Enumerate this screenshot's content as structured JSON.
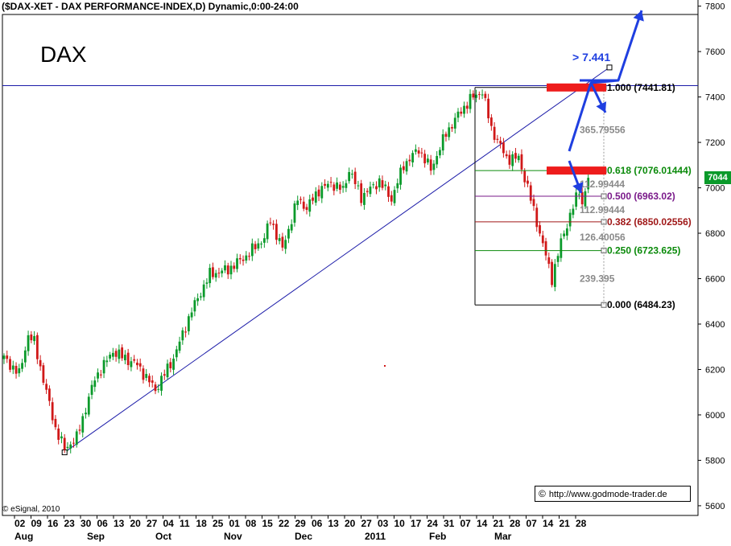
{
  "header": "($DAX-XET - DAX PERFORMANCE-INDEX,D) Dynamic,0:00-24:00",
  "label": "DAX",
  "credit": "http://www.godmode-trader.de",
  "credit_icon": "copyright-icon",
  "esignal": "© eSignal, 2010",
  "last_price": "7044",
  "target_label": "> 7.441",
  "colors": {
    "up": "#0a9a2a",
    "down": "#d01818",
    "trend": "#1a1aa8",
    "arrow": "#1f3fe0",
    "zone": "#ee1c1c"
  },
  "chart_data": {
    "type": "candlestick",
    "ylim": [
      5550,
      7850
    ],
    "y_ticks": [
      "5600",
      "5800",
      "6000",
      "6200",
      "6400",
      "6600",
      "6800",
      "7000",
      "7200",
      "7400",
      "7600",
      "7800"
    ],
    "x_day_labels": [
      "02",
      "09",
      "16",
      "23",
      "30",
      "06",
      "13",
      "20",
      "27",
      "04",
      "11",
      "18",
      "25",
      "01",
      "08",
      "15",
      "22",
      "29",
      "06",
      "13",
      "20",
      "27",
      "03",
      "10",
      "17",
      "24",
      "31",
      "07",
      "14",
      "21",
      "28",
      "07",
      "14",
      "21",
      "28"
    ],
    "x_month_labels": [
      "Aug",
      "Sep",
      "Oct",
      "Nov",
      "Dec",
      "2011",
      "Feb",
      "Mar"
    ],
    "close_waypoints": [
      [
        0,
        6250
      ],
      [
        5,
        6180
      ],
      [
        8,
        6350
      ],
      [
        10,
        6320
      ],
      [
        14,
        6100
      ],
      [
        17,
        5940
      ],
      [
        20,
        5850
      ],
      [
        24,
        5900
      ],
      [
        30,
        6160
      ],
      [
        36,
        6280
      ],
      [
        44,
        6220
      ],
      [
        50,
        6110
      ],
      [
        56,
        6250
      ],
      [
        62,
        6460
      ],
      [
        68,
        6620
      ],
      [
        74,
        6640
      ],
      [
        80,
        6700
      ],
      [
        86,
        6780
      ],
      [
        88,
        6860
      ],
      [
        92,
        6730
      ],
      [
        97,
        6950
      ],
      [
        100,
        6910
      ],
      [
        104,
        6990
      ],
      [
        108,
        7020
      ],
      [
        112,
        6990
      ],
      [
        114,
        7080
      ],
      [
        118,
        6960
      ],
      [
        124,
        7030
      ],
      [
        128,
        6950
      ],
      [
        132,
        7100
      ],
      [
        137,
        7170
      ],
      [
        141,
        7080
      ],
      [
        146,
        7240
      ],
      [
        150,
        7320
      ],
      [
        154,
        7390
      ],
      [
        158,
        7426
      ],
      [
        161,
        7260
      ],
      [
        166,
        7130
      ],
      [
        170,
        7130
      ],
      [
        173,
        7000
      ],
      [
        176,
        6850
      ],
      [
        181,
        6600
      ],
      [
        184,
        6760
      ],
      [
        187,
        6880
      ],
      [
        190,
        6990
      ],
      [
        191,
        6930
      ],
      [
        193,
        7044
      ]
    ],
    "fibonacci": [
      {
        "ratio": "1.000",
        "value": 7441.81,
        "color": "#000000"
      },
      {
        "ratio": "0.618",
        "value": 7076.01444,
        "color": "#0a8a0a"
      },
      {
        "ratio": "0.500",
        "value": 6963.02,
        "color": "#7a1a8a"
      },
      {
        "ratio": "0.382",
        "value": 6850.02556,
        "color": "#a01818"
      },
      {
        "ratio": "0.250",
        "value": 6723.625,
        "color": "#0a8a0a"
      },
      {
        "ratio": "0.000",
        "value": 6484.23,
        "color": "#000000"
      }
    ],
    "fib_spans": [
      "365.79556",
      "112.99444",
      "112.99444",
      "126.40056",
      "239.395"
    ],
    "trendline": {
      "from": [
        20,
        5835
      ],
      "to": [
        200,
        7530
      ]
    },
    "horizontal_line": 7450
  }
}
